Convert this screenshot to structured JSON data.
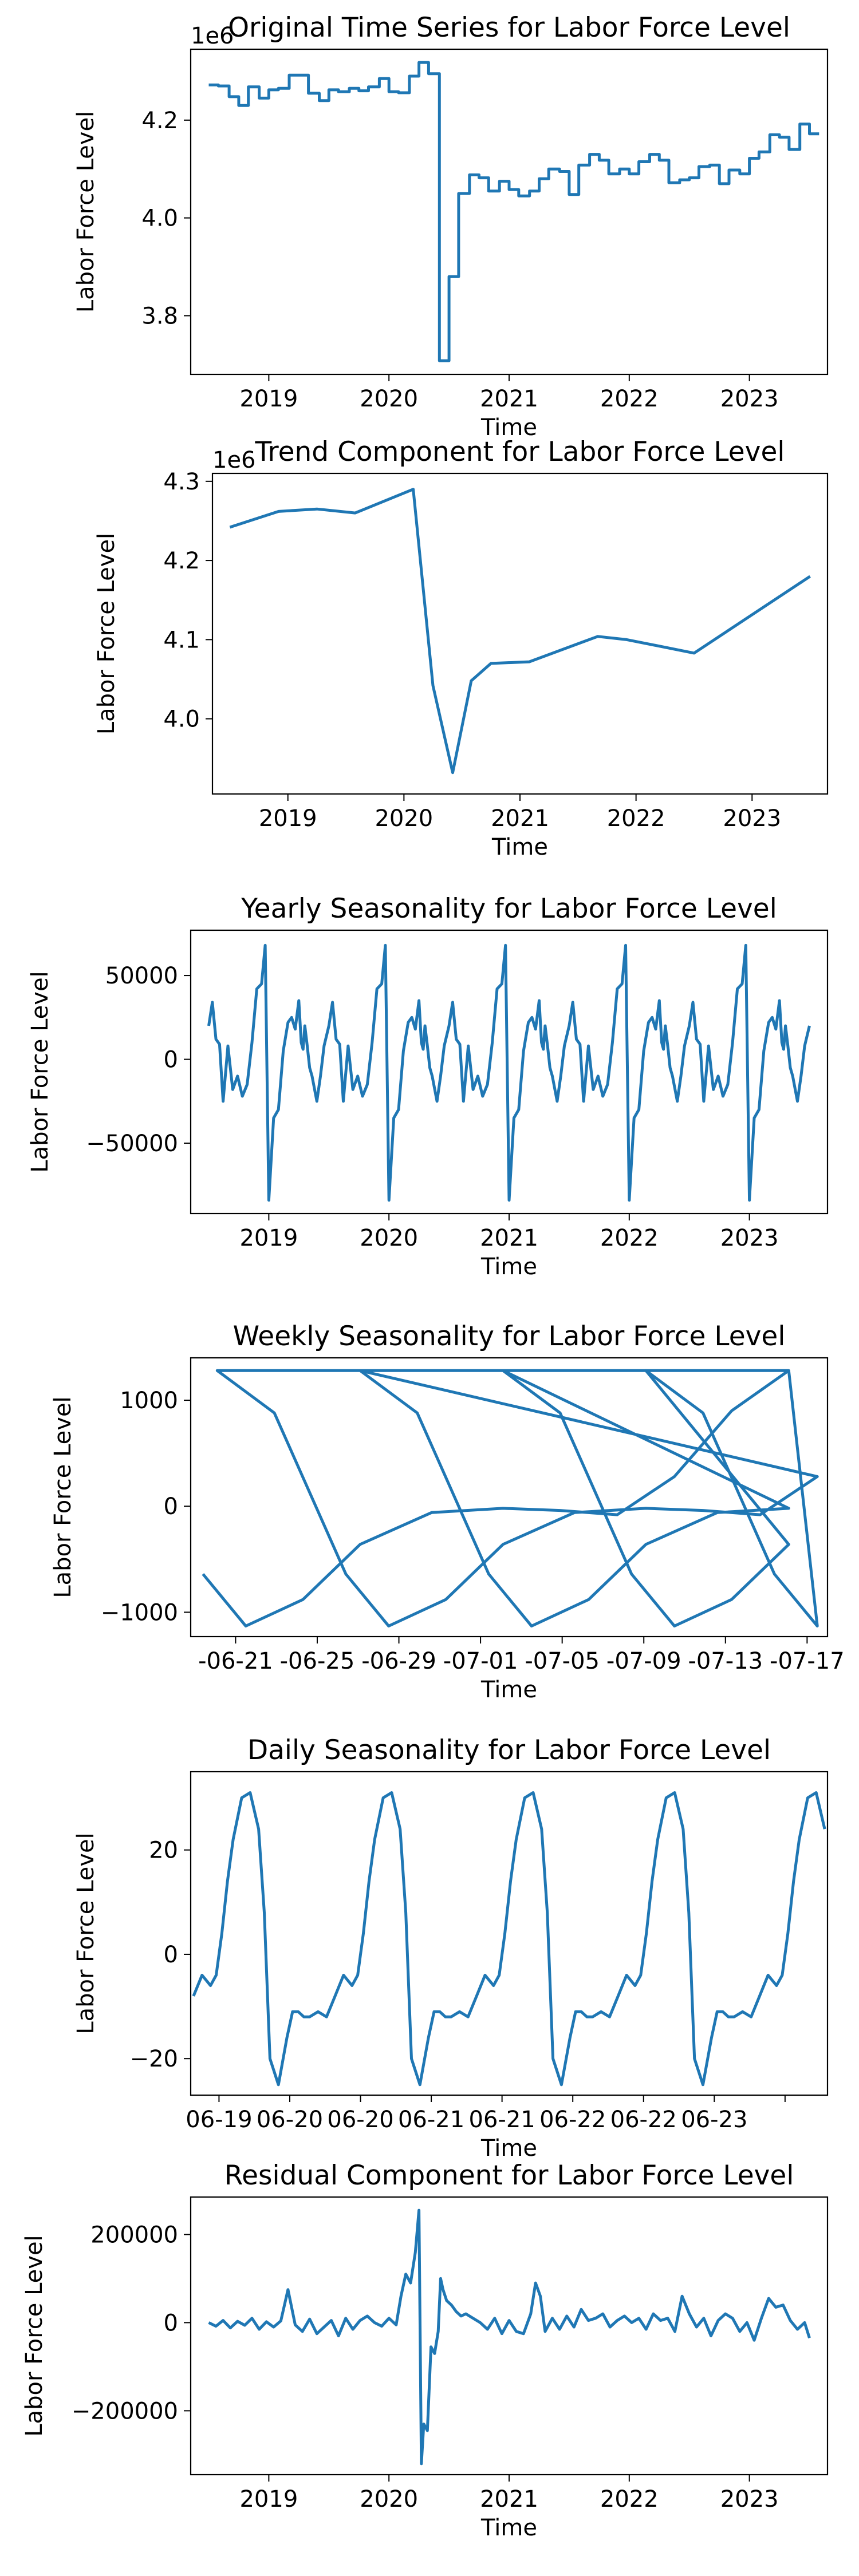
{
  "colors": {
    "line": "#1f77b4",
    "axes": "#000000",
    "background": "#ffffff"
  },
  "chart_data": [
    {
      "type": "line",
      "step": true,
      "title": "Original Time Series for Labor Force Level",
      "xlabel": "Time",
      "ylabel": "Labor Force Level",
      "offset_label": "1e6",
      "grid": false,
      "xlim": [
        2018.35,
        2023.65
      ],
      "ylim": [
        3680000,
        4345000
      ],
      "xticks": [
        2019,
        2020,
        2021,
        2022,
        2023
      ],
      "xtick_labels": [
        "2019",
        "2020",
        "2021",
        "2022",
        "2023"
      ],
      "yticks": [
        3800000,
        4000000,
        4200000
      ],
      "ytick_labels": [
        "3.8",
        "4.0",
        "4.2"
      ],
      "series": [
        {
          "x": [
            2018.5,
            2018.58,
            2018.67,
            2018.75,
            2018.83,
            2018.92,
            2019.0,
            2019.08,
            2019.17,
            2019.25,
            2019.33,
            2019.42,
            2019.5,
            2019.58,
            2019.67,
            2019.75,
            2019.83,
            2019.92,
            2020.0,
            2020.08,
            2020.17,
            2020.25,
            2020.33,
            2020.42,
            2020.5,
            2020.58,
            2020.67,
            2020.75,
            2020.83,
            2020.92,
            2021.0,
            2021.08,
            2021.17,
            2021.25,
            2021.33,
            2021.42,
            2021.5,
            2021.58,
            2021.67,
            2021.75,
            2021.83,
            2021.92,
            2022.0,
            2022.08,
            2022.17,
            2022.25,
            2022.33,
            2022.42,
            2022.5,
            2022.58,
            2022.67,
            2022.75,
            2022.83,
            2022.92,
            2023.0,
            2023.08,
            2023.17,
            2023.25,
            2023.33,
            2023.42,
            2023.5
          ],
          "y": [
            4272000,
            4270000,
            4248000,
            4230000,
            4268000,
            4245000,
            4262000,
            4265000,
            4292000,
            4292000,
            4255000,
            4240000,
            4262000,
            4258000,
            4265000,
            4260000,
            4268000,
            4285000,
            4258000,
            4256000,
            4290000,
            4318000,
            4295000,
            3708000,
            3880000,
            4050000,
            4088000,
            4082000,
            4055000,
            4075000,
            4058000,
            4045000,
            4055000,
            4080000,
            4100000,
            4095000,
            4048000,
            4108000,
            4130000,
            4118000,
            4090000,
            4100000,
            4090000,
            4115000,
            4130000,
            4118000,
            4072000,
            4078000,
            4082000,
            4105000,
            4108000,
            4070000,
            4098000,
            4090000,
            4122000,
            4135000,
            4170000,
            4165000,
            4140000,
            4192000,
            4172000
          ]
        }
      ]
    },
    {
      "type": "line",
      "title": "Trend Component for Labor Force Level",
      "xlabel": "Time",
      "ylabel": "Labor Force Level",
      "offset_label": "1e6",
      "grid": false,
      "xlim": [
        2018.35,
        2023.65
      ],
      "ylim": [
        3905000,
        4310000
      ],
      "xticks": [
        2019,
        2020,
        2021,
        2022,
        2023
      ],
      "xtick_labels": [
        "2019",
        "2020",
        "2021",
        "2022",
        "2023"
      ],
      "yticks": [
        4000000,
        4100000,
        4200000,
        4300000
      ],
      "ytick_labels": [
        "4.0",
        "4.1",
        "4.2",
        "4.3"
      ],
      "series": [
        {
          "x": [
            2018.5,
            2018.92,
            2019.25,
            2019.58,
            2020.08,
            2020.25,
            2020.42,
            2020.58,
            2020.75,
            2021.08,
            2021.67,
            2021.92,
            2022.5,
            2023.5
          ],
          "y": [
            4242000,
            4262000,
            4265000,
            4260000,
            4290000,
            4042000,
            3932000,
            4048000,
            4070000,
            4072000,
            4104000,
            4100000,
            4083000,
            4180000
          ]
        }
      ]
    },
    {
      "type": "line",
      "title": "Yearly Seasonality for Labor Force Level",
      "xlabel": "Time",
      "ylabel": "Labor Force Level",
      "grid": false,
      "xlim": [
        2018.35,
        2023.65
      ],
      "ylim": [
        -92000,
        77000
      ],
      "xticks": [
        2019,
        2020,
        2021,
        2022,
        2023
      ],
      "xtick_labels": [
        "2019",
        "2020",
        "2021",
        "2022",
        "2023"
      ],
      "yticks": [
        -50000,
        0,
        50000
      ],
      "ytick_labels": [
        "−50000",
        "0",
        "50000"
      ],
      "periodic": {
        "start": 2018.5,
        "end": 2023.5,
        "phase_x": [
          0.0,
          0.03,
          0.06,
          0.09,
          0.12,
          0.16,
          0.2,
          0.24,
          0.28,
          0.32,
          0.36,
          0.4,
          0.44,
          0.47,
          0.5,
          0.54,
          0.58,
          0.62,
          0.66,
          0.69,
          0.72,
          0.75,
          0.77,
          0.785,
          0.8,
          0.82,
          0.84,
          0.86,
          0.9,
          0.93,
          0.96,
          1.0
        ],
        "phase_y": [
          20000,
          34000,
          12000,
          9000,
          -25000,
          8000,
          -18000,
          -10000,
          -22000,
          -15000,
          10000,
          42000,
          45000,
          68000,
          -84000,
          -35000,
          -30000,
          5000,
          22000,
          25000,
          18000,
          35000,
          10000,
          6000,
          20000,
          8000,
          -5000,
          -10000,
          -25000,
          -10000,
          8000,
          20000
        ]
      }
    },
    {
      "type": "line",
      "title": "Weekly Seasonality for Labor Force Level",
      "xlabel": "Time",
      "ylabel": "Labor Force Level",
      "grid": false,
      "xlim": [
        0,
        31.2
      ],
      "ylim": [
        -1230.0,
        1400.0
      ],
      "xticks": [
        2.2,
        6.2,
        10.2,
        14.2,
        18.2,
        22.2,
        26.2,
        30.2
      ],
      "xtick_labels": [
        "-06-21",
        "-06-25",
        "-06-29",
        "-07-01",
        "-07-05",
        "-07-09",
        "-07-13",
        "-07-17"
      ],
      "yticks": [
        -1000,
        0,
        1000
      ],
      "ytick_labels": [
        "−1000",
        "0",
        "1000"
      ],
      "periodic": {
        "start": 0,
        "end": 31.2,
        "period": 7,
        "phase_x": [
          0.0,
          0.4,
          0.9,
          1.2,
          1.6,
          2.0,
          2.5,
          3.0,
          3.4,
          3.8,
          4.2,
          4.6,
          5.0,
          5.4,
          5.8,
          6.2,
          6.6,
          7.0
        ],
        "phase_y": [
          1280,
          880,
          -640,
          -1130,
          -880,
          -360,
          -60,
          -20,
          -40,
          -80,
          280,
          900,
          1280,
          1200,
          500,
          -400,
          -1050,
          -1130
        ]
      },
      "phase_offset": 1.3
    },
    {
      "type": "line",
      "title": "Daily Seasonality for Labor Force Level",
      "xlabel": "Time",
      "ylabel": "Labor Force Level",
      "grid": false,
      "xlim": [
        0,
        4.5
      ],
      "ylim": [
        -27.0,
        35.0
      ],
      "xticks": [
        0.2,
        0.7,
        1.2,
        1.7,
        2.2,
        2.7,
        3.2,
        3.7,
        4.2
      ],
      "xtick_labels": [
        "06-19",
        "06-20",
        "06-20",
        "06-21",
        "06-21",
        "06-22",
        "06-22",
        "06-23",
        ""
      ],
      "yticks": [
        -20,
        0,
        20
      ],
      "ytick_labels": [
        "−20",
        "0",
        "20"
      ],
      "periodic": {
        "start": 0,
        "end": 4.5,
        "period": 1,
        "phase_x": [
          0.0,
          0.06,
          0.12,
          0.18,
          0.24,
          0.28,
          0.32,
          0.36,
          0.4,
          0.46,
          0.52,
          0.58,
          0.62,
          0.66,
          0.72,
          0.78,
          0.82,
          0.86,
          0.9,
          0.94,
          1.0
        ],
        "phase_y": [
          -11,
          -12,
          -8,
          -4,
          -6,
          -4,
          4,
          14,
          22,
          30,
          31,
          24,
          8,
          -20,
          -25,
          -16,
          -11,
          -11,
          -12,
          -12,
          -11
        ]
      },
      "phase_offset": -0.1
    },
    {
      "type": "line",
      "title": "Residual Component for Labor Force Level",
      "xlabel": "Time",
      "ylabel": "Labor Force Level",
      "grid": false,
      "xlim": [
        2018.35,
        2023.65
      ],
      "ylim": [
        -345000,
        285000
      ],
      "xticks": [
        2019,
        2020,
        2021,
        2022,
        2023
      ],
      "xtick_labels": [
        "2019",
        "2020",
        "2021",
        "2022",
        "2023"
      ],
      "yticks": [
        -200000,
        0,
        200000
      ],
      "ytick_labels": [
        "−200000",
        "0",
        "200000"
      ],
      "series": [
        {
          "x": [
            2018.5,
            2018.56,
            2018.62,
            2018.68,
            2018.74,
            2018.8,
            2018.86,
            2018.92,
            2018.98,
            2019.04,
            2019.1,
            2019.16,
            2019.22,
            2019.28,
            2019.34,
            2019.4,
            2019.46,
            2019.52,
            2019.58,
            2019.64,
            2019.7,
            2019.76,
            2019.82,
            2019.88,
            2019.94,
            2020.0,
            2020.06,
            2020.1,
            2020.14,
            2020.18,
            2020.22,
            2020.25,
            2020.27,
            2020.29,
            2020.32,
            2020.35,
            2020.38,
            2020.41,
            2020.43,
            2020.45,
            2020.48,
            2020.52,
            2020.56,
            2020.6,
            2020.64,
            2020.7,
            2020.76,
            2020.82,
            2020.88,
            2020.94,
            2021.0,
            2021.06,
            2021.12,
            2021.18,
            2021.22,
            2021.26,
            2021.3,
            2021.36,
            2021.42,
            2021.48,
            2021.54,
            2021.6,
            2021.66,
            2021.72,
            2021.78,
            2021.84,
            2021.9,
            2021.96,
            2022.02,
            2022.08,
            2022.14,
            2022.2,
            2022.26,
            2022.32,
            2022.38,
            2022.44,
            2022.5,
            2022.56,
            2022.62,
            2022.68,
            2022.74,
            2022.8,
            2022.86,
            2022.92,
            2022.98,
            2023.04,
            2023.1,
            2023.16,
            2023.22,
            2023.28,
            2023.34,
            2023.4,
            2023.46,
            2023.5
          ],
          "y": [
            0,
            -8000,
            5000,
            -12000,
            3000,
            -6000,
            10000,
            -15000,
            2000,
            -10000,
            4000,
            75000,
            -5000,
            -20000,
            8000,
            -25000,
            -10000,
            5000,
            -30000,
            10000,
            -15000,
            5000,
            15000,
            0,
            -8000,
            10000,
            -5000,
            60000,
            110000,
            90000,
            160000,
            255000,
            -320000,
            -230000,
            -245000,
            -55000,
            -70000,
            -20000,
            100000,
            75000,
            50000,
            40000,
            25000,
            15000,
            20000,
            10000,
            0,
            -15000,
            10000,
            -25000,
            5000,
            -20000,
            -25000,
            20000,
            90000,
            60000,
            -20000,
            10000,
            -15000,
            15000,
            -10000,
            30000,
            5000,
            10000,
            20000,
            -10000,
            5000,
            15000,
            0,
            10000,
            -15000,
            20000,
            5000,
            10000,
            -20000,
            60000,
            20000,
            -10000,
            10000,
            -30000,
            5000,
            20000,
            10000,
            -20000,
            0,
            -40000,
            10000,
            55000,
            35000,
            40000,
            5000,
            -15000,
            0,
            -35000
          ]
        }
      ]
    }
  ]
}
